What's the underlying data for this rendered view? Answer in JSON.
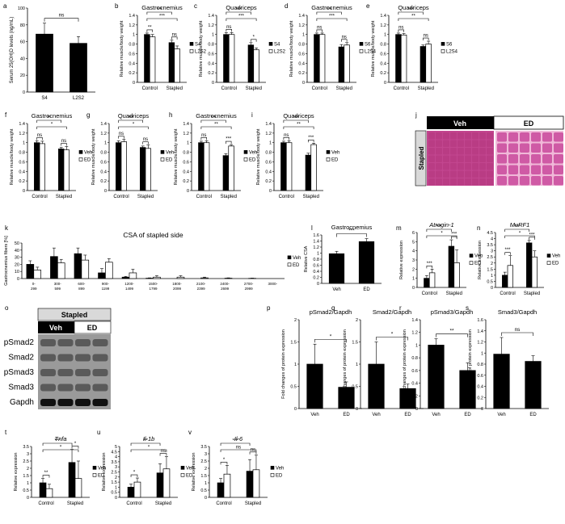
{
  "colors": {
    "black": "#000000",
    "white": "#ffffff",
    "stapled_header": "#d9d9d9",
    "veh_header": "#000000",
    "histo_veh": "#c2468f",
    "histo_ed": "#f0b8d8"
  },
  "histology": {
    "label": "j",
    "headers": [
      "Veh",
      "ED"
    ],
    "row_label": "Stapled"
  },
  "western": {
    "label": "o",
    "header": "Stapled",
    "cols": [
      "Veh",
      "ED"
    ],
    "rows": [
      "pSmad2",
      "Smad2",
      "pSmad3",
      "Smad3",
      "Gapdh"
    ]
  },
  "chart_data": [
    {
      "id": "a",
      "type": "bar",
      "title": "",
      "ylabel": "Serum 25(OH)D levels (ng/mL)",
      "ylim": [
        0,
        100
      ],
      "yticks": [
        0,
        20,
        40,
        60,
        80,
        100
      ],
      "categories": [
        "S4",
        "L2S2"
      ],
      "series": [
        {
          "values": [
            69,
            58
          ],
          "errors": [
            13,
            8
          ]
        }
      ],
      "annotations": [
        "ns"
      ]
    },
    {
      "id": "b",
      "type": "bar",
      "title": "Gastrocnemius",
      "ylabel": "Relative muscle/body weight",
      "ylim": [
        0,
        1.4
      ],
      "yticks": [
        "0",
        "0.2",
        "0.4",
        "0.6",
        "0.8",
        "1",
        "1.2",
        "1.4"
      ],
      "categories": [
        "Control",
        "Stapled"
      ],
      "series": [
        {
          "name": "S4",
          "values": [
            1.0,
            0.83
          ],
          "errors": [
            0.03,
            0.05
          ]
        },
        {
          "name": "L2S2",
          "values": [
            0.95,
            0.7
          ],
          "errors": [
            0.05,
            0.06
          ]
        }
      ],
      "annotations": [
        "***",
        "***",
        "**",
        "ns",
        "**"
      ]
    },
    {
      "id": "c",
      "type": "bar",
      "title": "Quadriceps",
      "ylabel": "Relative muscle/body weight",
      "ylim": [
        0,
        1.4
      ],
      "yticks": [
        "0",
        "0.2",
        "0.4",
        "0.6",
        "0.8",
        "1",
        "1.2",
        "1.4"
      ],
      "categories": [
        "Control",
        "Stapled"
      ],
      "series": [
        {
          "name": "S4",
          "values": [
            1.0,
            0.78
          ],
          "errors": [
            0.04,
            0.05
          ]
        },
        {
          "name": "L2S2",
          "values": [
            1.0,
            0.68
          ],
          "errors": [
            0.04,
            0.04
          ]
        }
      ],
      "annotations": [
        "***",
        "***",
        "ns",
        "*"
      ]
    },
    {
      "id": "d",
      "type": "bar",
      "title": "Gastrocnemius",
      "ylabel": "Relative muscle/body weight",
      "ylim": [
        0,
        1.4
      ],
      "yticks": [
        "0",
        "0.2",
        "0.4",
        "0.6",
        "0.8",
        "1",
        "1.2",
        "1.4"
      ],
      "categories": [
        "Control",
        "Stapled"
      ],
      "series": [
        {
          "name": "S6",
          "values": [
            1.0,
            0.74
          ],
          "errors": [
            0.03,
            0.05
          ]
        },
        {
          "name": "L2S4",
          "values": [
            1.0,
            0.78
          ],
          "errors": [
            0.03,
            0.05
          ]
        }
      ],
      "annotations": [
        "***",
        "***",
        "ns",
        "ns"
      ]
    },
    {
      "id": "e",
      "type": "bar",
      "title": "Quadriceps",
      "ylabel": "Relative muscle/body weight",
      "ylim": [
        0,
        1.4
      ],
      "yticks": [
        "0",
        "0.2",
        "0.4",
        "0.6",
        "0.8",
        "1",
        "1.2",
        "1.4"
      ],
      "categories": [
        "Control",
        "Stapled"
      ],
      "series": [
        {
          "name": "S6",
          "values": [
            1.0,
            0.75
          ],
          "errors": [
            0.03,
            0.03
          ]
        },
        {
          "name": "L2S4",
          "values": [
            0.99,
            0.8
          ],
          "errors": [
            0.03,
            0.06
          ]
        }
      ],
      "annotations": [
        "***",
        "**",
        "ns",
        "ns"
      ]
    },
    {
      "id": "f",
      "type": "bar",
      "title": "Gastrocnemius",
      "ylabel": "Relative muscle/body weight",
      "ylim": [
        0,
        1.4
      ],
      "yticks": [
        "0",
        "0.2",
        "0.4",
        "0.6",
        "0.8",
        "1",
        "1.2",
        "1.4"
      ],
      "categories": [
        "Control",
        "Stapled"
      ],
      "series": [
        {
          "name": "Veh",
          "values": [
            1.0,
            0.87
          ],
          "errors": [
            0.04,
            0.03
          ]
        },
        {
          "name": "ED",
          "values": [
            0.98,
            0.85
          ],
          "errors": [
            0.05,
            0.07
          ]
        }
      ],
      "annotations": [
        "**",
        "*",
        "ns",
        "ns"
      ]
    },
    {
      "id": "g",
      "type": "bar",
      "title": "Quadriceps",
      "ylabel": "Relative muscle/body weight",
      "ylim": [
        0,
        1.4
      ],
      "yticks": [
        "0",
        "0.2",
        "0.4",
        "0.6",
        "0.8",
        "1",
        "1.2",
        "1.4"
      ],
      "categories": [
        "Control",
        "Stapled"
      ],
      "series": [
        {
          "name": "Veh",
          "values": [
            1.0,
            0.9
          ],
          "errors": [
            0.04,
            0.03
          ]
        },
        {
          "name": "ED",
          "values": [
            1.02,
            0.88
          ],
          "errors": [
            0.05,
            0.07
          ]
        }
      ],
      "annotations": [
        "***",
        "*",
        "ns",
        "ns"
      ]
    },
    {
      "id": "h",
      "type": "bar",
      "title": "Gastrocnemius",
      "ylabel": "Relative muscle/body weight",
      "ylim": [
        0,
        1.4
      ],
      "yticks": [
        "0",
        "0.2",
        "0.4",
        "0.6",
        "0.8",
        "1",
        "1.2",
        "1.4"
      ],
      "categories": [
        "Control",
        "Stapled"
      ],
      "series": [
        {
          "name": "Veh",
          "values": [
            1.0,
            0.73
          ],
          "errors": [
            0.03,
            0.04
          ]
        },
        {
          "name": "ED",
          "values": [
            1.0,
            0.93
          ],
          "errors": [
            0.04,
            0.03
          ]
        }
      ],
      "annotations": [
        "***",
        "**",
        "ns",
        "***"
      ]
    },
    {
      "id": "i",
      "type": "bar",
      "title": "Quadriceps",
      "ylabel": "Relative muscle/body weight",
      "ylim": [
        0,
        1.4
      ],
      "yticks": [
        "0",
        "0.2",
        "0.4",
        "0.6",
        "0.8",
        "1",
        "1.2",
        "1.4"
      ],
      "categories": [
        "Control",
        "Stapled"
      ],
      "series": [
        {
          "name": "Veh",
          "values": [
            1.0,
            0.74
          ],
          "errors": [
            0.03,
            0.04
          ]
        },
        {
          "name": "ED",
          "values": [
            1.0,
            0.96
          ],
          "errors": [
            0.04,
            0.03
          ]
        }
      ],
      "annotations": [
        "***",
        "**",
        "ns",
        "***"
      ]
    },
    {
      "id": "k",
      "type": "bar",
      "title": "CSA of stapled side",
      "ylabel": "Gastrocnemius fibers [%]",
      "ylim": [
        0,
        50
      ],
      "yticks": [
        "0",
        "10",
        "20",
        "30",
        "40",
        "50"
      ],
      "categories": [
        "0-299",
        "300-599",
        "600-899",
        "900-1199",
        "1200-1499",
        "1500-1799",
        "1800-2099",
        "2100-2399",
        "2400-2699",
        "2700-2999",
        "3000-"
      ],
      "series": [
        {
          "name": "Veh",
          "values": [
            20,
            31,
            35,
            8,
            2,
            0.5,
            0,
            0,
            0,
            0,
            0
          ],
          "errors": [
            5,
            12,
            8,
            6,
            1,
            0.5,
            0,
            0,
            0,
            0,
            0
          ]
        },
        {
          "name": "ED",
          "values": [
            12,
            22,
            26,
            23,
            8,
            2,
            2,
            1,
            0.5,
            0.3,
            0
          ],
          "errors": [
            4,
            5,
            7,
            5,
            5,
            2,
            2,
            1,
            0.5,
            0.3,
            0
          ]
        }
      ]
    },
    {
      "id": "l",
      "type": "bar",
      "title": "Gastrocnemius",
      "ylabel": "Relative CSA",
      "ylim": [
        0,
        1.6
      ],
      "yticks": [
        "0",
        "0.2",
        "0.4",
        "0.6",
        "0.8",
        "1",
        "1.2",
        "1.4",
        "1.6"
      ],
      "categories": [
        "Veh",
        "ED"
      ],
      "series": [
        {
          "values": [
            0.98,
            1.38
          ],
          "errors": [
            0.08,
            0.1
          ]
        }
      ],
      "annotations": [
        "***"
      ]
    },
    {
      "id": "m",
      "type": "bar",
      "title": "Atrogin-1",
      "ylabel": "Relative expression",
      "ylim": [
        0,
        6
      ],
      "yticks": [
        "0",
        "1",
        "2",
        "3",
        "4",
        "5",
        "6"
      ],
      "categories": [
        "Control",
        "Stapled"
      ],
      "series": [
        {
          "name": "Veh",
          "values": [
            1.0,
            4.5
          ],
          "errors": [
            0.3,
            0.7
          ]
        },
        {
          "name": "ED",
          "values": [
            1.6,
            2.7
          ],
          "errors": [
            0.4,
            1.4
          ]
        }
      ],
      "annotations": [
        "***",
        "*",
        "***",
        "***"
      ]
    },
    {
      "id": "n",
      "type": "bar",
      "title": "MuRF1",
      "ylabel": "Relative expression",
      "ylim": [
        0,
        4.5
      ],
      "yticks": [
        "0",
        "0.5",
        "1",
        "1.5",
        "2",
        "2.5",
        "3",
        "3.5",
        "4",
        "4.5"
      ],
      "categories": [
        "Control",
        "Stapled"
      ],
      "series": [
        {
          "name": "Veh",
          "values": [
            1.0,
            3.65
          ],
          "errors": [
            0.25,
            0.2
          ]
        },
        {
          "name": "ED",
          "values": [
            1.8,
            2.5
          ],
          "errors": [
            0.8,
            0.5
          ]
        }
      ],
      "annotations": [
        "***",
        "*",
        "***",
        "***"
      ]
    },
    {
      "id": "p",
      "type": "bar",
      "title": "pSmad2/Gapdh",
      "ylabel": "Fold changes of protein expression",
      "ylim": [
        0,
        2
      ],
      "yticks": [
        "0",
        "0.5",
        "1",
        "1.5",
        "2"
      ],
      "categories": [
        "Veh",
        "ED"
      ],
      "series": [
        {
          "values": [
            1.0,
            0.48
          ],
          "errors": [
            0.45,
            0.12
          ]
        }
      ],
      "annotations": [
        "*"
      ]
    },
    {
      "id": "q",
      "type": "bar",
      "title": "Smad2/Gapdh",
      "ylabel": "Fold changes of protein expression",
      "ylim": [
        0,
        2
      ],
      "yticks": [
        "0",
        "0.5",
        "1",
        "1.5",
        "2"
      ],
      "categories": [
        "Veh",
        "ED"
      ],
      "series": [
        {
          "values": [
            1.0,
            0.45
          ],
          "errors": [
            0.5,
            0.1
          ]
        }
      ],
      "annotations": [
        "*"
      ]
    },
    {
      "id": "r",
      "type": "bar",
      "title": "pSmad3/Gapdh",
      "ylabel": "Fold changes of protein expression",
      "ylim": [
        0,
        1.4
      ],
      "yticks": [
        "0",
        "0.2",
        "0.4",
        "0.6",
        "0.8",
        "1",
        "1.2",
        "1.4"
      ],
      "categories": [
        "Veh",
        "ED"
      ],
      "series": [
        {
          "values": [
            1.0,
            0.6
          ],
          "errors": [
            0.1,
            0.12
          ]
        }
      ],
      "annotations": [
        "**"
      ]
    },
    {
      "id": "s",
      "type": "bar",
      "title": "Smad3/Gapdh",
      "ylabel": "Fold changes of protein expression",
      "ylim": [
        0,
        1.6
      ],
      "yticks": [
        "0",
        "0.2",
        "0.4",
        "0.6",
        "0.8",
        "1",
        "1.2",
        "1.4",
        "1.6"
      ],
      "categories": [
        "Veh",
        "ED"
      ],
      "series": [
        {
          "values": [
            0.98,
            0.85
          ],
          "errors": [
            0.3,
            0.1
          ]
        }
      ],
      "annotations": [
        "ns"
      ]
    },
    {
      "id": "t",
      "type": "bar",
      "title": "Tnfa",
      "ylabel": "Relative expression",
      "ylim": [
        0,
        3.5
      ],
      "yticks": [
        "0",
        "0.5",
        "1",
        "1.5",
        "2",
        "2.5",
        "3",
        "3.5"
      ],
      "categories": [
        "Control",
        "Stapled"
      ],
      "series": [
        {
          "name": "Veh",
          "values": [
            1.0,
            2.4
          ],
          "errors": [
            0.3,
            0.9
          ]
        },
        {
          "name": "ED",
          "values": [
            0.6,
            1.3
          ],
          "errors": [
            0.3,
            1.2
          ]
        }
      ],
      "annotations": [
        "***",
        "*",
        "**",
        "*"
      ]
    },
    {
      "id": "u",
      "type": "bar",
      "title": "Il-1b",
      "ylabel": "Relative expression",
      "ylim": [
        0,
        5
      ],
      "yticks": [
        "0",
        "0.5",
        "1",
        "1.5",
        "2",
        "2.5",
        "3",
        "3.5",
        "4",
        "4.5",
        "5"
      ],
      "categories": [
        "Control",
        "Stapled"
      ],
      "series": [
        {
          "name": "Veh",
          "values": [
            1.0,
            2.4
          ],
          "errors": [
            0.3,
            0.9
          ]
        },
        {
          "name": "ED",
          "values": [
            1.5,
            2.8
          ],
          "errors": [
            0.4,
            1.2
          ]
        }
      ],
      "annotations": [
        "**",
        "*",
        "*",
        "ns"
      ]
    },
    {
      "id": "v",
      "type": "bar",
      "title": "Il-6",
      "ylabel": "Relative expression",
      "ylim": [
        0,
        3.5
      ],
      "yticks": [
        "0",
        "0.5",
        "1",
        "1.5",
        "2",
        "2.5",
        "3",
        "3.5"
      ],
      "categories": [
        "Control",
        "Stapled"
      ],
      "series": [
        {
          "name": "Veh",
          "values": [
            1.0,
            1.8
          ],
          "errors": [
            0.3,
            0.8
          ]
        },
        {
          "name": "ED",
          "values": [
            1.6,
            1.9
          ],
          "errors": [
            0.6,
            1.0
          ]
        }
      ],
      "annotations": [
        "***",
        "ns",
        "*",
        "ns"
      ]
    }
  ]
}
